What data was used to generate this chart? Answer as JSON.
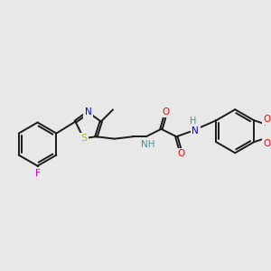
{
  "bg_color": "#e8e8e8",
  "bond_color": "#1a1a1a",
  "lw": 1.4,
  "font_size": 7.5,
  "colors": {
    "F": "#cc00cc",
    "S": "#bbbb00",
    "N": "#0000dd",
    "O": "#ff0000",
    "NH": "#4a9090",
    "H": "#4a9090"
  }
}
